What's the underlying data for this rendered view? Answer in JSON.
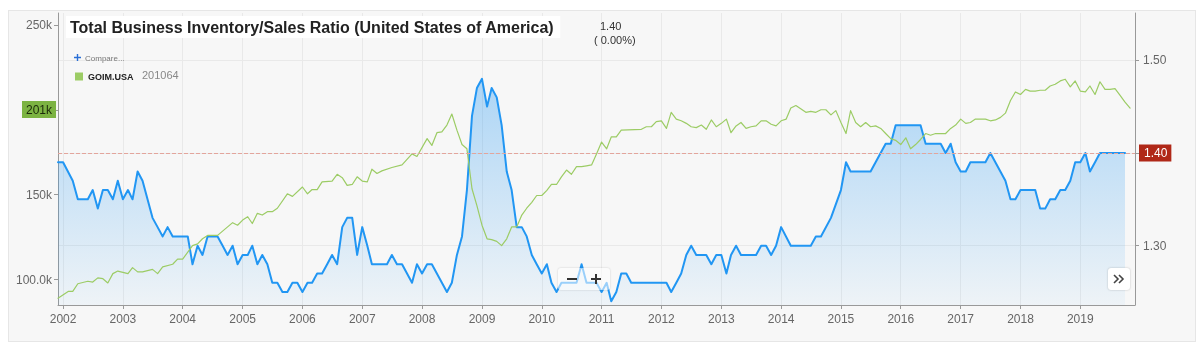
{
  "chart_data": {
    "type": "line",
    "title": "Total Business Inventory/Sales Ratio (United States of America)",
    "annotations": [
      "1.40",
      "( 0.00%)",
      "Compare...",
      "201064",
      "201k"
    ],
    "xlim": [
      "2001-12",
      "2019-12"
    ],
    "xticks": [
      "2002",
      "2003",
      "2004",
      "2005",
      "2006",
      "2007",
      "2008",
      "2009",
      "2010",
      "2011",
      "2012",
      "2013",
      "2014",
      "2015",
      "2016",
      "2017",
      "2018",
      "2019"
    ],
    "ylim": [
      85000,
      257000
    ],
    "yticks": [
      {
        "value": 100000,
        "label": "100.0k"
      },
      {
        "value": 150000,
        "label": "150k"
      },
      {
        "value": 200000,
        "label": null
      },
      {
        "value": 250000,
        "label": "250k"
      }
    ],
    "y2lim": [
      1.236,
      1.551
    ],
    "y2ticks": [
      {
        "value": 1.3,
        "label": "1.30"
      },
      {
        "value": 1.4,
        "label": null
      },
      {
        "value": 1.5,
        "label": "1.50"
      }
    ],
    "grid": true,
    "legend": "top left",
    "marker": "none",
    "ref_lines": [
      {
        "axis": "y2",
        "value": 1.4,
        "label": "1.40",
        "color": "#e3a59c",
        "line_style": "dashed"
      }
    ],
    "series": [
      {
        "type": "area",
        "axis": "y2",
        "color": "#2196f3",
        "x": [
          "2001-12",
          "2002-01",
          "2002-03",
          "2002-04",
          "2002-06",
          "2002-07",
          "2002-08",
          "2002-09",
          "2002-10",
          "2002-11",
          "2002-12",
          "2003-01",
          "2003-02",
          "2003-03",
          "2003-04",
          "2003-05",
          "2003-07",
          "2003-08",
          "2003-09",
          "2003-10",
          "2003-11",
          "2004-02",
          "2004-03",
          "2004-04",
          "2004-05",
          "2004-06",
          "2004-08",
          "2004-09",
          "2004-10",
          "2004-11",
          "2004-12",
          "2005-01",
          "2005-02",
          "2005-03",
          "2005-04",
          "2005-05",
          "2005-06",
          "2005-07",
          "2005-08",
          "2005-09",
          "2005-10",
          "2005-11",
          "2005-12",
          "2006-01",
          "2006-02",
          "2006-03",
          "2006-04",
          "2006-05",
          "2006-06",
          "2006-07",
          "2006-08",
          "2006-09",
          "2006-10",
          "2006-11",
          "2006-12",
          "2007-01",
          "2007-02",
          "2007-03",
          "2007-06",
          "2007-07",
          "2007-08",
          "2007-09",
          "2007-11",
          "2007-12",
          "2008-01",
          "2008-02",
          "2008-03",
          "2008-06",
          "2008-07",
          "2008-08",
          "2008-09",
          "2008-10",
          "2008-11",
          "2008-12",
          "2009-01",
          "2009-02",
          "2009-03",
          "2009-04",
          "2009-05",
          "2009-06",
          "2009-07",
          "2009-08",
          "2009-09",
          "2009-10",
          "2009-11",
          "2009-12",
          "2010-01",
          "2010-02",
          "2010-03",
          "2010-04",
          "2010-05",
          "2010-08",
          "2010-09",
          "2010-10",
          "2010-12",
          "2011-01",
          "2011-02",
          "2011-03",
          "2011-04",
          "2011-05",
          "2011-06",
          "2011-07",
          "2012-02",
          "2012-03",
          "2012-04",
          "2012-05",
          "2012-06",
          "2012-07",
          "2012-08",
          "2012-10",
          "2012-11",
          "2012-12",
          "2013-01",
          "2013-02",
          "2013-03",
          "2013-04",
          "2013-05",
          "2013-08",
          "2013-09",
          "2013-10",
          "2013-11",
          "2013-12",
          "2014-01",
          "2014-03",
          "2014-07",
          "2014-08",
          "2014-09",
          "2014-11",
          "2015-01",
          "2015-02",
          "2015-03",
          "2015-07",
          "2015-10",
          "2015-11",
          "2015-12",
          "2016-05",
          "2016-06",
          "2016-09",
          "2016-10",
          "2016-11",
          "2016-12",
          "2017-01",
          "2017-02",
          "2017-03",
          "2017-06",
          "2017-07",
          "2017-10",
          "2017-11",
          "2017-12",
          "2018-01",
          "2018-04",
          "2018-05",
          "2018-06",
          "2018-07",
          "2018-08",
          "2018-09",
          "2018-10",
          "2018-11",
          "2018-12",
          "2019-01",
          "2019-02",
          "2019-03",
          "2019-04",
          "2019-05",
          "2019-10"
        ],
        "values": [
          1.39,
          1.39,
          1.37,
          1.35,
          1.35,
          1.36,
          1.34,
          1.36,
          1.36,
          1.35,
          1.37,
          1.35,
          1.36,
          1.35,
          1.38,
          1.37,
          1.33,
          1.32,
          1.31,
          1.32,
          1.31,
          1.31,
          1.28,
          1.3,
          1.29,
          1.31,
          1.31,
          1.3,
          1.29,
          1.3,
          1.28,
          1.29,
          1.29,
          1.3,
          1.28,
          1.29,
          1.28,
          1.26,
          1.26,
          1.25,
          1.25,
          1.26,
          1.26,
          1.25,
          1.26,
          1.26,
          1.27,
          1.27,
          1.28,
          1.29,
          1.28,
          1.32,
          1.33,
          1.33,
          1.29,
          1.32,
          1.3,
          1.28,
          1.28,
          1.29,
          1.28,
          1.28,
          1.26,
          1.28,
          1.27,
          1.28,
          1.28,
          1.25,
          1.26,
          1.29,
          1.31,
          1.36,
          1.44,
          1.47,
          1.48,
          1.45,
          1.47,
          1.46,
          1.43,
          1.38,
          1.36,
          1.32,
          1.32,
          1.31,
          1.29,
          1.28,
          1.27,
          1.28,
          1.26,
          1.25,
          1.26,
          1.26,
          1.28,
          1.26,
          1.26,
          1.25,
          1.26,
          1.24,
          1.25,
          1.27,
          1.27,
          1.26,
          1.26,
          1.25,
          1.26,
          1.27,
          1.29,
          1.3,
          1.29,
          1.29,
          1.28,
          1.29,
          1.29,
          1.27,
          1.29,
          1.3,
          1.29,
          1.29,
          1.3,
          1.3,
          1.29,
          1.3,
          1.32,
          1.3,
          1.3,
          1.31,
          1.31,
          1.33,
          1.36,
          1.39,
          1.38,
          1.38,
          1.41,
          1.41,
          1.43,
          1.43,
          1.41,
          1.41,
          1.4,
          1.41,
          1.39,
          1.38,
          1.38,
          1.39,
          1.39,
          1.4,
          1.37,
          1.35,
          1.35,
          1.36,
          1.36,
          1.34,
          1.34,
          1.35,
          1.35,
          1.36,
          1.36,
          1.37,
          1.39,
          1.39,
          1.4,
          1.38,
          1.39,
          1.4,
          1.4
        ]
      },
      {
        "name": "GOIM.USA",
        "color": "#9ccc65",
        "x": [
          "2001-12",
          "2002-02",
          "2002-03",
          "2002-04",
          "2002-06",
          "2002-07",
          "2002-08",
          "2002-09",
          "2002-10",
          "2002-11",
          "2002-12",
          "2003-02",
          "2003-03",
          "2003-04",
          "2003-05",
          "2003-07",
          "2003-08",
          "2003-09",
          "2003-11",
          "2003-12",
          "2004-01",
          "2004-03",
          "2004-04",
          "2004-05",
          "2004-06",
          "2004-08",
          "2004-11",
          "2004-12",
          "2005-01",
          "2005-02",
          "2005-03",
          "2005-04",
          "2005-05",
          "2005-06",
          "2005-07",
          "2005-08",
          "2005-10",
          "2005-11",
          "2006-01",
          "2006-02",
          "2006-03",
          "2006-04",
          "2006-05",
          "2006-07",
          "2006-08",
          "2006-09",
          "2006-10",
          "2006-11",
          "2006-12",
          "2007-01",
          "2007-02",
          "2007-03",
          "2007-04",
          "2007-05",
          "2007-07",
          "2007-09",
          "2007-11",
          "2007-12",
          "2008-02",
          "2008-03",
          "2008-04",
          "2008-05",
          "2008-06",
          "2008-07",
          "2008-08",
          "2008-09",
          "2008-10",
          "2008-11",
          "2008-12",
          "2009-01",
          "2009-02",
          "2009-03",
          "2009-04",
          "2009-05",
          "2009-06",
          "2009-07",
          "2009-08",
          "2009-09",
          "2009-10",
          "2009-11",
          "2009-12",
          "2010-01",
          "2010-02",
          "2010-03",
          "2010-04",
          "2010-05",
          "2010-06",
          "2010-07",
          "2010-08",
          "2010-09",
          "2010-10",
          "2010-11",
          "2010-12",
          "2011-01",
          "2011-02",
          "2011-03",
          "2011-04",
          "2011-05",
          "2011-09",
          "2011-10",
          "2011-11",
          "2011-12",
          "2012-01",
          "2012-02",
          "2012-03",
          "2012-04",
          "2012-05",
          "2012-06",
          "2012-07",
          "2012-08",
          "2012-09",
          "2012-10",
          "2012-11",
          "2012-12",
          "2013-01",
          "2013-02",
          "2013-03",
          "2013-04",
          "2013-05",
          "2013-06",
          "2013-07",
          "2013-08",
          "2013-09",
          "2013-10",
          "2013-11",
          "2013-12",
          "2014-01",
          "2014-02",
          "2014-03",
          "2014-04",
          "2014-06",
          "2014-07",
          "2014-08",
          "2014-09",
          "2014-10",
          "2014-11",
          "2014-12",
          "2015-01",
          "2015-02",
          "2015-03",
          "2015-04",
          "2015-05",
          "2015-06",
          "2015-07",
          "2015-08",
          "2015-09",
          "2015-10",
          "2015-11",
          "2015-12",
          "2016-01",
          "2016-02",
          "2016-03",
          "2016-04",
          "2016-05",
          "2016-06",
          "2016-07",
          "2016-08",
          "2016-10",
          "2016-11",
          "2016-12",
          "2017-01",
          "2017-02",
          "2017-03",
          "2017-04",
          "2017-06",
          "2017-07",
          "2017-08",
          "2017-09",
          "2017-10",
          "2017-11",
          "2017-12",
          "2018-01",
          "2018-02",
          "2018-03",
          "2018-04",
          "2018-05",
          "2018-06",
          "2018-07",
          "2018-08",
          "2018-09",
          "2018-10",
          "2018-11",
          "2018-12",
          "2019-01",
          "2019-02",
          "2019-03",
          "2019-04",
          "2019-05",
          "2019-06",
          "2019-07",
          "2019-08",
          "2019-09",
          "2019-10",
          "2019-11"
        ],
        "values": [
          89000,
          93000,
          93000,
          97500,
          99000,
          98500,
          101000,
          100500,
          98000,
          103500,
          105000,
          103500,
          107000,
          104500,
          104500,
          106000,
          103500,
          107500,
          109000,
          112000,
          112000,
          120000,
          121000,
          124000,
          126000,
          126000,
          133500,
          132000,
          135000,
          137000,
          133000,
          139000,
          138000,
          140000,
          140000,
          142000,
          150500,
          149000,
          154500,
          150500,
          153000,
          153000,
          157500,
          158000,
          162000,
          160000,
          155500,
          156000,
          160500,
          158000,
          157500,
          165000,
          162500,
          164000,
          166000,
          167500,
          174000,
          172500,
          183000,
          179000,
          186500,
          187000,
          191000,
          197500,
          188000,
          179500,
          177000,
          153500,
          143500,
          132000,
          124000,
          123500,
          122500,
          120000,
          124000,
          131000,
          131000,
          138000,
          142000,
          145500,
          149500,
          149500,
          152500,
          156000,
          156000,
          160500,
          164500,
          162000,
          166500,
          166500,
          167000,
          167500,
          174000,
          181000,
          177000,
          184000,
          184000,
          188000,
          188500,
          190000,
          190000,
          193000,
          193500,
          189000,
          198500,
          194500,
          193500,
          192000,
          190000,
          189500,
          191000,
          188500,
          194000,
          190000,
          192000,
          194500,
          186500,
          190500,
          192500,
          189000,
          190000,
          190500,
          193500,
          193500,
          191500,
          190500,
          193500,
          194500,
          201000,
          202500,
          198500,
          199000,
          198500,
          200000,
          200000,
          197000,
          199500,
          192500,
          186000,
          199500,
          192500,
          190000,
          192500,
          190000,
          190500,
          189000,
          186000,
          183000,
          182000,
          179500,
          183500,
          177000,
          179500,
          182500,
          186000,
          185000,
          186000,
          186000,
          189000,
          191000,
          194500,
          192000,
          192500,
          194500,
          194500,
          193500,
          194000,
          195500,
          198000,
          205500,
          210500,
          209000,
          212000,
          211000,
          211000,
          211500,
          211500,
          214000,
          215000,
          217000,
          218000,
          213500,
          217000,
          211000,
          210500,
          214000,
          209000,
          216500,
          212000,
          212000,
          212500,
          208500,
          204500,
          201000
        ]
      }
    ]
  }
}
